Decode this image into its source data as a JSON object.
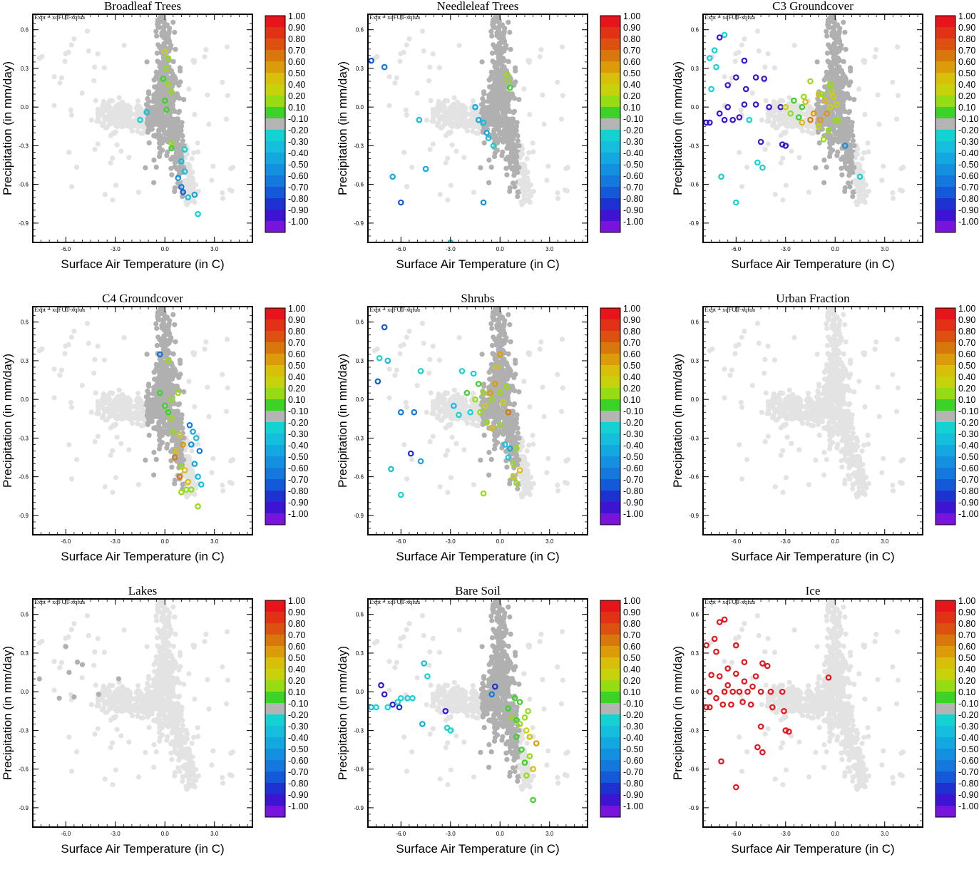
{
  "figure": {
    "expt_label": "Expt = xqFUT-xqfua",
    "xlabel": "Surface Air Temperature (in C)",
    "ylabel": "Precipitation (in mm/day)",
    "x_ticks": [
      "-6.0",
      "-3.0",
      "0.0",
      "3.0"
    ],
    "y_ticks": [
      "0.6",
      "0.3",
      "0.0",
      "-0.3",
      "-0.6",
      "-0.9"
    ],
    "xlim": [
      -8.0,
      5.3
    ],
    "ylim": [
      -1.05,
      0.72
    ],
    "colors": {
      "background_points": "#e3e3e3",
      "neutral_points": "#b0b0b0",
      "axes": "#000000"
    },
    "colorbar": {
      "labels": [
        "1.00",
        "0.90",
        "0.80",
        "0.70",
        "0.60",
        "0.50",
        "0.40",
        "0.20",
        "0.10",
        "-0.10",
        "-0.20",
        "-0.30",
        "-0.40",
        "-0.50",
        "-0.60",
        "-0.70",
        "-0.80",
        "-0.90",
        "-1.00"
      ],
      "colors": [
        "#e8141c",
        "#e23216",
        "#dc5010",
        "#d8780c",
        "#dc9c0a",
        "#d8c00a",
        "#c8d20c",
        "#96dc14",
        "#3cd228",
        "#b4b4b4",
        "#14d2d2",
        "#14bedc",
        "#14a8e0",
        "#1490e0",
        "#1478dc",
        "#145ad8",
        "#1e32d2",
        "#3c14d2",
        "#7814dc"
      ]
    }
  },
  "chart_data": [
    {
      "type": "scatter",
      "title": "Broadleaf Trees",
      "pattern": "broadleaf"
    },
    {
      "type": "scatter",
      "title": "Needleleaf Trees",
      "pattern": "needleleaf"
    },
    {
      "type": "scatter",
      "title": "C3 Groundcover",
      "pattern": "c3"
    },
    {
      "type": "scatter",
      "title": "C4 Groundcover",
      "pattern": "c4"
    },
    {
      "type": "scatter",
      "title": "Shrubs",
      "pattern": "shrubs"
    },
    {
      "type": "scatter",
      "title": "Urban Fraction",
      "pattern": "urban"
    },
    {
      "type": "scatter",
      "title": "Lakes",
      "pattern": "lakes"
    },
    {
      "type": "scatter",
      "title": "Bare Soil",
      "pattern": "baresoil"
    },
    {
      "type": "scatter",
      "title": "Ice",
      "pattern": "ice"
    }
  ]
}
